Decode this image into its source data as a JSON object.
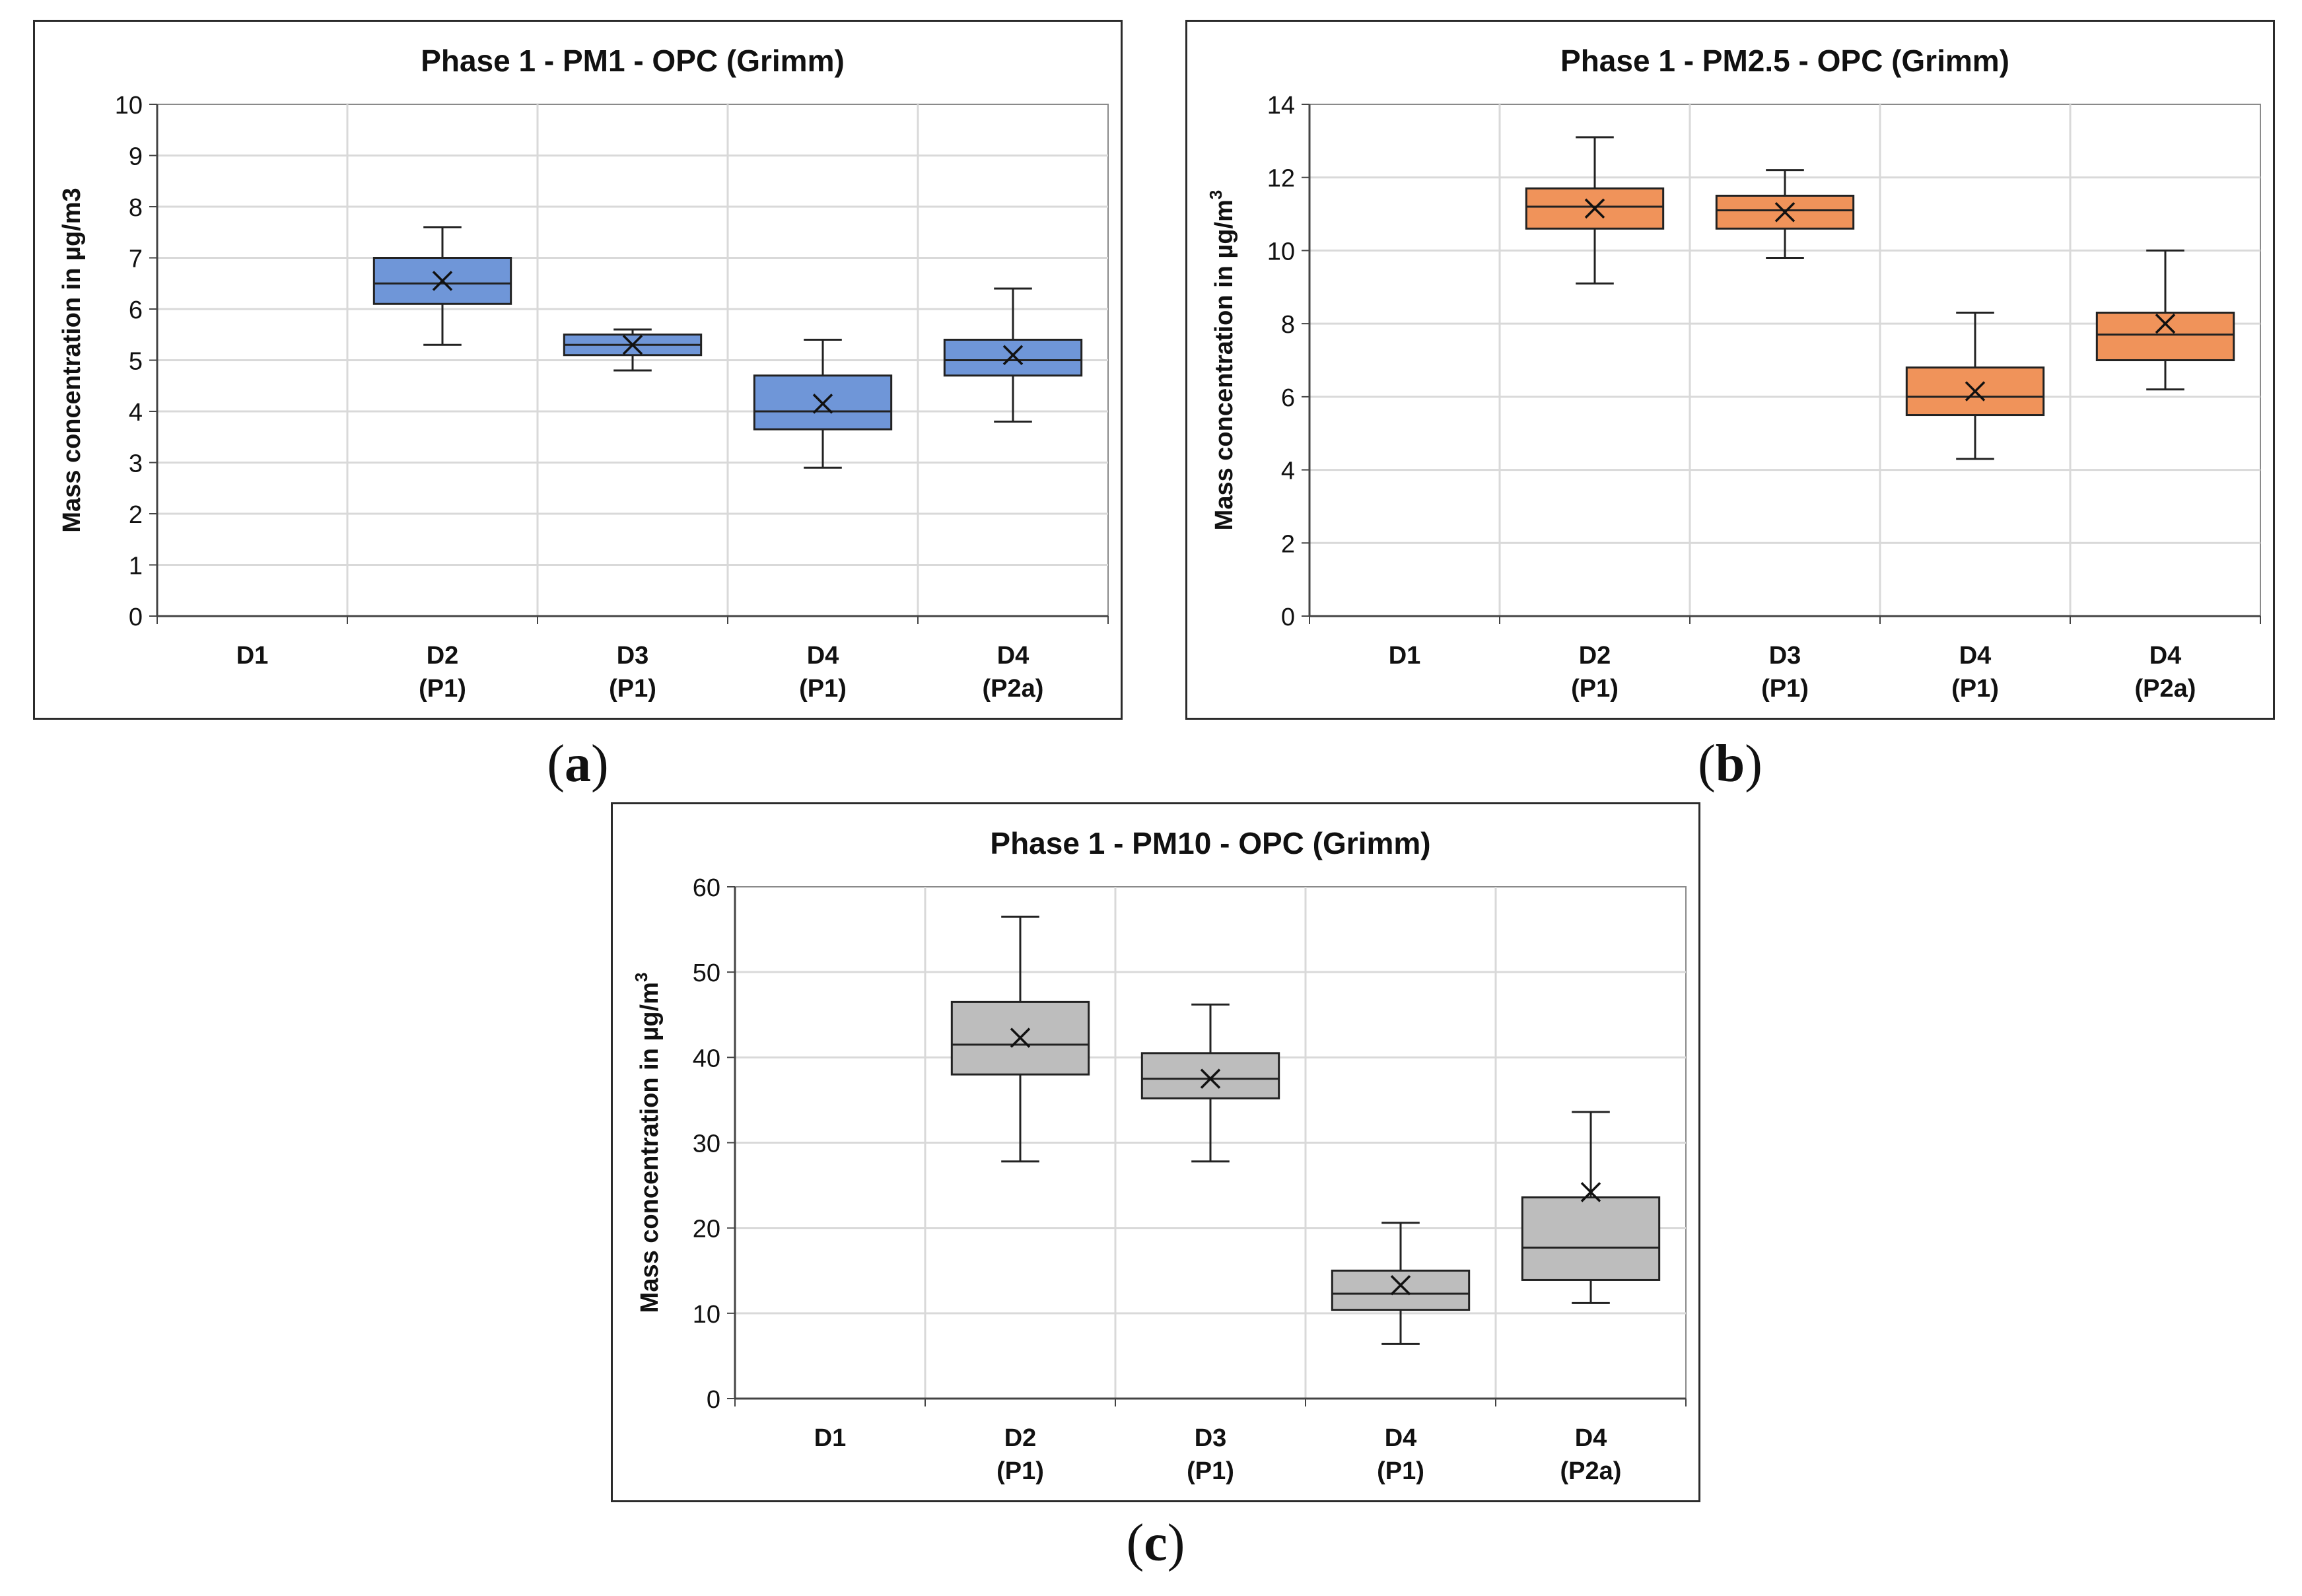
{
  "panels": [
    {
      "id": "a",
      "label_open": "(",
      "label_letter": "a",
      "label_close": ")",
      "chart_data": {
        "type": "box",
        "title": "Phase 1 - PM1 - OPC (Grimm)",
        "ylabel_main": "Mass concentration in µg/m3",
        "ylabel_sup": "",
        "ylim": [
          0,
          10
        ],
        "yticks": [
          "0",
          "1",
          "2",
          "3",
          "4",
          "5",
          "6",
          "7",
          "8",
          "9",
          "10"
        ],
        "categories": [
          [
            "D1",
            ""
          ],
          [
            "D2",
            "(P1)"
          ],
          [
            "D3",
            "(P1)"
          ],
          [
            "D4",
            "(P1)"
          ],
          [
            "D4",
            "(P2a)"
          ]
        ],
        "fill": "#6f96d8",
        "boxes": [
          null,
          {
            "min": 5.3,
            "q1": 6.1,
            "median": 6.5,
            "q3": 7.0,
            "max": 7.6,
            "mean": 6.55
          },
          {
            "min": 4.8,
            "q1": 5.1,
            "median": 5.3,
            "q3": 5.5,
            "max": 5.6,
            "mean": 5.3
          },
          {
            "min": 2.9,
            "q1": 3.65,
            "median": 4.0,
            "q3": 4.7,
            "max": 5.4,
            "mean": 4.15
          },
          {
            "min": 3.8,
            "q1": 4.7,
            "median": 5.0,
            "q3": 5.4,
            "max": 6.4,
            "mean": 5.1
          }
        ]
      }
    },
    {
      "id": "b",
      "label_open": "(",
      "label_letter": "b",
      "label_close": ")",
      "chart_data": {
        "type": "box",
        "title": "Phase 1 - PM2.5 - OPC (Grimm)",
        "ylabel_main": "Mass concentration in µg/m",
        "ylabel_sup": "3",
        "ylim": [
          0,
          14
        ],
        "yticks": [
          "0",
          "2",
          "4",
          "6",
          "8",
          "10",
          "12",
          "14"
        ],
        "categories": [
          [
            "D1",
            ""
          ],
          [
            "D2",
            "(P1)"
          ],
          [
            "D3",
            "(P1)"
          ],
          [
            "D4",
            "(P1)"
          ],
          [
            "D4",
            "(P2a)"
          ]
        ],
        "fill": "#f0935a",
        "boxes": [
          null,
          {
            "min": 9.1,
            "q1": 10.6,
            "median": 11.2,
            "q3": 11.7,
            "max": 13.1,
            "mean": 11.15
          },
          {
            "min": 9.8,
            "q1": 10.6,
            "median": 11.1,
            "q3": 11.5,
            "max": 12.2,
            "mean": 11.05
          },
          {
            "min": 4.3,
            "q1": 5.5,
            "median": 6.0,
            "q3": 6.8,
            "max": 8.3,
            "mean": 6.15
          },
          {
            "min": 6.2,
            "q1": 7.0,
            "median": 7.7,
            "q3": 8.3,
            "max": 10.0,
            "mean": 8.0
          }
        ]
      }
    },
    {
      "id": "c",
      "label_open": "(",
      "label_letter": "c",
      "label_close": ")",
      "chart_data": {
        "type": "box",
        "title": "Phase 1 - PM10 - OPC (Grimm)",
        "ylabel_main": "Mass concentration in µg/m",
        "ylabel_sup": "3",
        "ylim": [
          0,
          60
        ],
        "yticks": [
          "0",
          "10",
          "20",
          "30",
          "40",
          "50",
          "60"
        ],
        "categories": [
          [
            "D1",
            ""
          ],
          [
            "D2",
            "(P1)"
          ],
          [
            "D3",
            "(P1)"
          ],
          [
            "D4",
            "(P1)"
          ],
          [
            "D4",
            "(P2a)"
          ]
        ],
        "fill": "#bdbdbd",
        "boxes": [
          null,
          {
            "min": 27.8,
            "q1": 38.0,
            "median": 41.5,
            "q3": 46.5,
            "max": 56.5,
            "mean": 42.3
          },
          {
            "min": 27.8,
            "q1": 35.2,
            "median": 37.5,
            "q3": 40.5,
            "max": 46.2,
            "mean": 37.5
          },
          {
            "min": 6.4,
            "q1": 10.4,
            "median": 12.3,
            "q3": 15.0,
            "max": 20.6,
            "mean": 13.3
          },
          {
            "min": 11.2,
            "q1": 13.9,
            "median": 17.7,
            "q3": 23.6,
            "max": 33.6,
            "mean": 24.2
          }
        ]
      }
    }
  ]
}
